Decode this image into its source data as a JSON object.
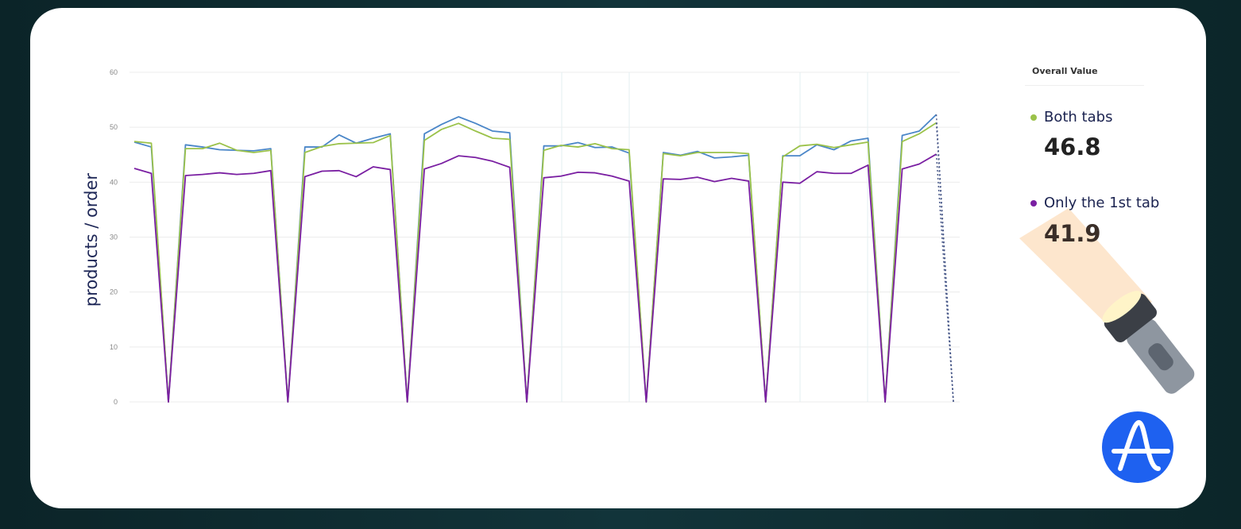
{
  "chart_data": {
    "type": "line",
    "title": "",
    "xlabel": "",
    "ylabel": "products / order",
    "ylim": [
      0,
      60
    ],
    "yticks": [
      0,
      10,
      20,
      30,
      40,
      50,
      60
    ],
    "grid": true,
    "legend_title": "Overall Value",
    "legend_position": "right",
    "dotted_last_segment": true,
    "series": [
      {
        "color": "#4a86c8",
        "values": [
          47.3,
          46.4,
          0,
          46.8,
          46.4,
          45.9,
          45.8,
          45.7,
          46.1,
          0,
          46.4,
          46.4,
          48.6,
          47.1,
          48.0,
          48.8,
          0,
          48.8,
          50.5,
          51.9,
          50.7,
          49.3,
          49.0,
          0,
          46.6,
          46.6,
          47.2,
          46.3,
          46.4,
          45.3,
          0,
          45.4,
          44.9,
          45.6,
          44.4,
          44.6,
          44.9,
          0,
          44.8,
          44.8,
          46.8,
          45.9,
          47.5,
          48.0,
          0,
          48.5,
          49.3,
          52.3,
          0
        ]
      },
      {
        "name": "Both tabs",
        "overall": "46.8",
        "color": "#9bc24a",
        "values": [
          47.4,
          47.1,
          0,
          46.1,
          46.1,
          47.1,
          45.8,
          45.4,
          45.8,
          0,
          45.4,
          46.5,
          47.0,
          47.1,
          47.2,
          48.5,
          0,
          47.6,
          49.6,
          50.7,
          49.3,
          48.0,
          47.8,
          0,
          45.8,
          46.7,
          46.4,
          47.0,
          46.1,
          45.9,
          0,
          45.2,
          44.8,
          45.4,
          45.4,
          45.4,
          45.2,
          0,
          44.6,
          46.6,
          46.9,
          46.3,
          46.8,
          47.3,
          0,
          47.4,
          48.8,
          50.8,
          0
        ]
      },
      {
        "name": "Only the 1st tab",
        "overall": "41.9",
        "color": "#7a1fa2",
        "values": [
          42.5,
          41.6,
          0,
          41.2,
          41.4,
          41.7,
          41.4,
          41.6,
          42.1,
          0,
          41.0,
          42.0,
          42.1,
          41.0,
          42.8,
          42.3,
          0,
          42.4,
          43.4,
          44.8,
          44.5,
          43.8,
          42.7,
          0,
          40.8,
          41.1,
          41.8,
          41.7,
          41.1,
          40.2,
          0,
          40.6,
          40.5,
          40.9,
          40.1,
          40.7,
          40.2,
          0,
          40.0,
          39.8,
          41.9,
          41.6,
          41.6,
          43.1,
          0,
          42.4,
          43.3,
          45.1,
          0
        ]
      }
    ]
  },
  "logo": {
    "name": "amplitude-logo",
    "color": "#1e61f0"
  },
  "decoration": {
    "icon": "flashlight-icon"
  }
}
